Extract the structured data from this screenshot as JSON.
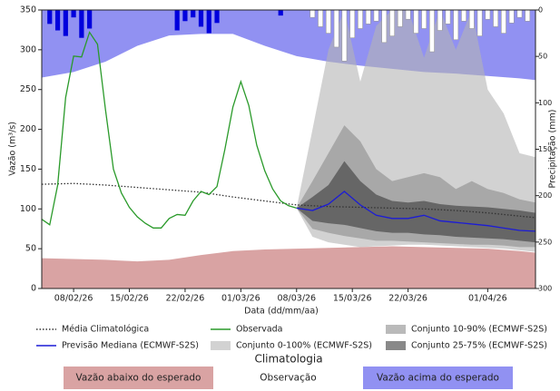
{
  "chart_data": {
    "type": "area",
    "xlabel": "Data (dd/mm/aa)",
    "ylabel": "Vazão (m³/s)",
    "y2label": "Precipitação (mm)",
    "xlim": [
      "04/02/26",
      "07/04/26"
    ],
    "xticks": [
      "08/02/26",
      "15/02/26",
      "22/02/26",
      "01/03/26",
      "08/03/26",
      "15/03/26",
      "22/03/26",
      "01/04/26"
    ],
    "ylim": [
      0,
      350
    ],
    "yticks": [
      0,
      50,
      100,
      150,
      200,
      250,
      300,
      350
    ],
    "y2lim": [
      0,
      300
    ],
    "y2ticks": [
      0,
      50,
      100,
      150,
      200,
      250,
      300
    ],
    "y2_inverted": true,
    "band_opacity": 0.6,
    "climatology": {
      "title": "Climatologia",
      "x": [
        "04/02/26",
        "08/02/26",
        "12/02/26",
        "16/02/26",
        "20/02/26",
        "24/02/26",
        "28/02/26",
        "04/03/26",
        "08/03/26",
        "12/03/26",
        "16/03/26",
        "20/03/26",
        "24/03/26",
        "28/03/26",
        "01/04/26",
        "05/04/26",
        "07/04/26"
      ],
      "below": {
        "name": "Vazão abaixo do esperado",
        "color": "#d9a3a3",
        "values": [
          38,
          37,
          36,
          34,
          36,
          42,
          47,
          49,
          50,
          51,
          52,
          53,
          52,
          51,
          50,
          47,
          45
        ]
      },
      "normal": {
        "name": "Observação",
        "color": "#ffffff"
      },
      "above": {
        "name": "Vazão acima do esperado",
        "color": "#9191f2",
        "values": [
          265,
          272,
          285,
          305,
          318,
          320,
          320,
          305,
          292,
          285,
          280,
          276,
          272,
          270,
          267,
          264,
          262
        ]
      }
    },
    "bands": [
      {
        "name": "Conjunto 0-100% (ECMWF-S2S)",
        "color": "#b4b4b4",
        "x": [
          "08/03/26",
          "10/03/26",
          "12/03/26",
          "14/03/26",
          "16/03/26",
          "18/03/26",
          "20/03/26",
          "22/03/26",
          "24/03/26",
          "26/03/26",
          "28/03/26",
          "30/03/26",
          "01/04/26",
          "03/04/26",
          "05/04/26",
          "07/04/26"
        ],
        "lower": [
          101,
          65,
          58,
          55,
          52,
          53,
          54,
          55,
          55,
          54,
          53,
          52,
          51,
          50,
          48,
          46
        ],
        "upper": [
          101,
          200,
          300,
          350,
          260,
          330,
          350,
          350,
          290,
          350,
          300,
          350,
          250,
          220,
          170,
          165
        ]
      },
      {
        "name": "Conjunto 10-90% (ECMWF-S2S)",
        "color": "#8c8c8c",
        "x": [
          "08/03/26",
          "10/03/26",
          "12/03/26",
          "14/03/26",
          "16/03/26",
          "18/03/26",
          "20/03/26",
          "22/03/26",
          "24/03/26",
          "26/03/26",
          "28/03/26",
          "30/03/26",
          "01/04/26",
          "03/04/26",
          "05/04/26",
          "07/04/26"
        ],
        "lower": [
          101,
          75,
          70,
          66,
          63,
          60,
          60,
          59,
          58,
          57,
          56,
          55,
          55,
          54,
          52,
          52
        ],
        "upper": [
          101,
          135,
          170,
          205,
          185,
          150,
          135,
          140,
          145,
          140,
          125,
          135,
          125,
          120,
          112,
          108
        ]
      },
      {
        "name": "Conjunto 25-75% (ECMWF-S2S)",
        "color": "#3a3a3a",
        "x": [
          "08/03/26",
          "10/03/26",
          "12/03/26",
          "14/03/26",
          "16/03/26",
          "18/03/26",
          "20/03/26",
          "22/03/26",
          "24/03/26",
          "26/03/26",
          "28/03/26",
          "30/03/26",
          "01/04/26",
          "03/04/26",
          "05/04/26",
          "07/04/26"
        ],
        "lower": [
          101,
          85,
          82,
          80,
          76,
          72,
          70,
          70,
          68,
          67,
          65,
          64,
          63,
          62,
          60,
          58
        ],
        "upper": [
          101,
          115,
          130,
          160,
          135,
          118,
          110,
          108,
          110,
          106,
          104,
          103,
          102,
          100,
          98,
          95
        ]
      }
    ],
    "series": [
      {
        "name": "Média Climatológica",
        "color": "#333333",
        "style": "dotted",
        "x": [
          "04/02/26",
          "08/02/26",
          "12/02/26",
          "16/02/26",
          "20/02/26",
          "24/02/26",
          "28/02/26",
          "04/03/26",
          "08/03/26",
          "12/03/26",
          "16/03/26",
          "20/03/26",
          "24/03/26",
          "28/03/26",
          "01/04/26",
          "05/04/26",
          "07/04/26"
        ],
        "values": [
          131,
          132,
          130,
          127,
          124,
          121,
          115,
          110,
          105,
          103,
          102,
          101,
          100,
          98,
          95,
          91,
          89
        ]
      },
      {
        "name": "Observada",
        "color": "#2a9a2a",
        "style": "solid",
        "x": [
          "04/02/26",
          "05/02/26",
          "06/02/26",
          "07/02/26",
          "08/02/26",
          "09/02/26",
          "10/02/26",
          "11/02/26",
          "12/02/26",
          "13/02/26",
          "14/02/26",
          "15/02/26",
          "16/02/26",
          "17/02/26",
          "18/02/26",
          "19/02/26",
          "20/02/26",
          "21/02/26",
          "22/02/26",
          "23/02/26",
          "24/02/26",
          "25/02/26",
          "26/02/26",
          "27/02/26",
          "28/02/26",
          "01/03/26",
          "02/03/26",
          "03/03/26",
          "04/03/26",
          "05/03/26",
          "06/03/26",
          "07/03/26",
          "08/03/26"
        ],
        "values": [
          87,
          80,
          130,
          240,
          292,
          291,
          322,
          307,
          225,
          150,
          120,
          102,
          90,
          82,
          76,
          76,
          88,
          93,
          92,
          110,
          122,
          118,
          128,
          175,
          228,
          260,
          230,
          180,
          148,
          125,
          110,
          104,
          101
        ]
      },
      {
        "name": "Previsão Mediana (ECMWF-S2S)",
        "color": "#1c1cd6",
        "style": "solid",
        "x": [
          "08/03/26",
          "10/03/26",
          "12/03/26",
          "14/03/26",
          "16/03/26",
          "18/03/26",
          "20/03/26",
          "22/03/26",
          "24/03/26",
          "26/03/26",
          "28/03/26",
          "30/03/26",
          "01/04/26",
          "03/04/26",
          "05/04/26",
          "07/04/26"
        ],
        "values": [
          101,
          98,
          106,
          122,
          105,
          92,
          88,
          88,
          92,
          85,
          83,
          81,
          79,
          76,
          73,
          72
        ]
      }
    ],
    "precipitation": [
      {
        "color": "#0000dd",
        "axis": "y2",
        "x": [
          "05/02/26",
          "06/02/26",
          "07/02/26",
          "08/02/26",
          "09/02/26",
          "10/02/26",
          "21/02/26",
          "22/02/26",
          "23/02/26",
          "24/02/26",
          "25/02/26",
          "26/02/26",
          "06/03/26"
        ],
        "values": [
          15,
          22,
          28,
          8,
          30,
          20,
          22,
          12,
          8,
          18,
          25,
          14,
          6
        ]
      },
      {
        "color": "#ffffff",
        "edge": "#9a9a9a",
        "axis": "y2",
        "x": [
          "10/03/26",
          "11/03/26",
          "12/03/26",
          "13/03/26",
          "14/03/26",
          "15/03/26",
          "16/03/26",
          "17/03/26",
          "18/03/26",
          "19/03/26",
          "20/03/26",
          "21/03/26",
          "22/03/26",
          "23/03/26",
          "24/03/26",
          "25/03/26",
          "26/03/26",
          "27/03/26",
          "28/03/26",
          "29/03/26",
          "30/03/26",
          "31/03/26",
          "01/04/26",
          "02/04/26",
          "03/04/26",
          "04/04/26",
          "05/04/26",
          "06/04/26"
        ],
        "values": [
          8,
          18,
          25,
          40,
          55,
          30,
          20,
          15,
          12,
          35,
          28,
          18,
          10,
          25,
          20,
          45,
          22,
          15,
          32,
          12,
          20,
          28,
          10,
          18,
          25,
          14,
          8,
          12
        ]
      }
    ]
  }
}
